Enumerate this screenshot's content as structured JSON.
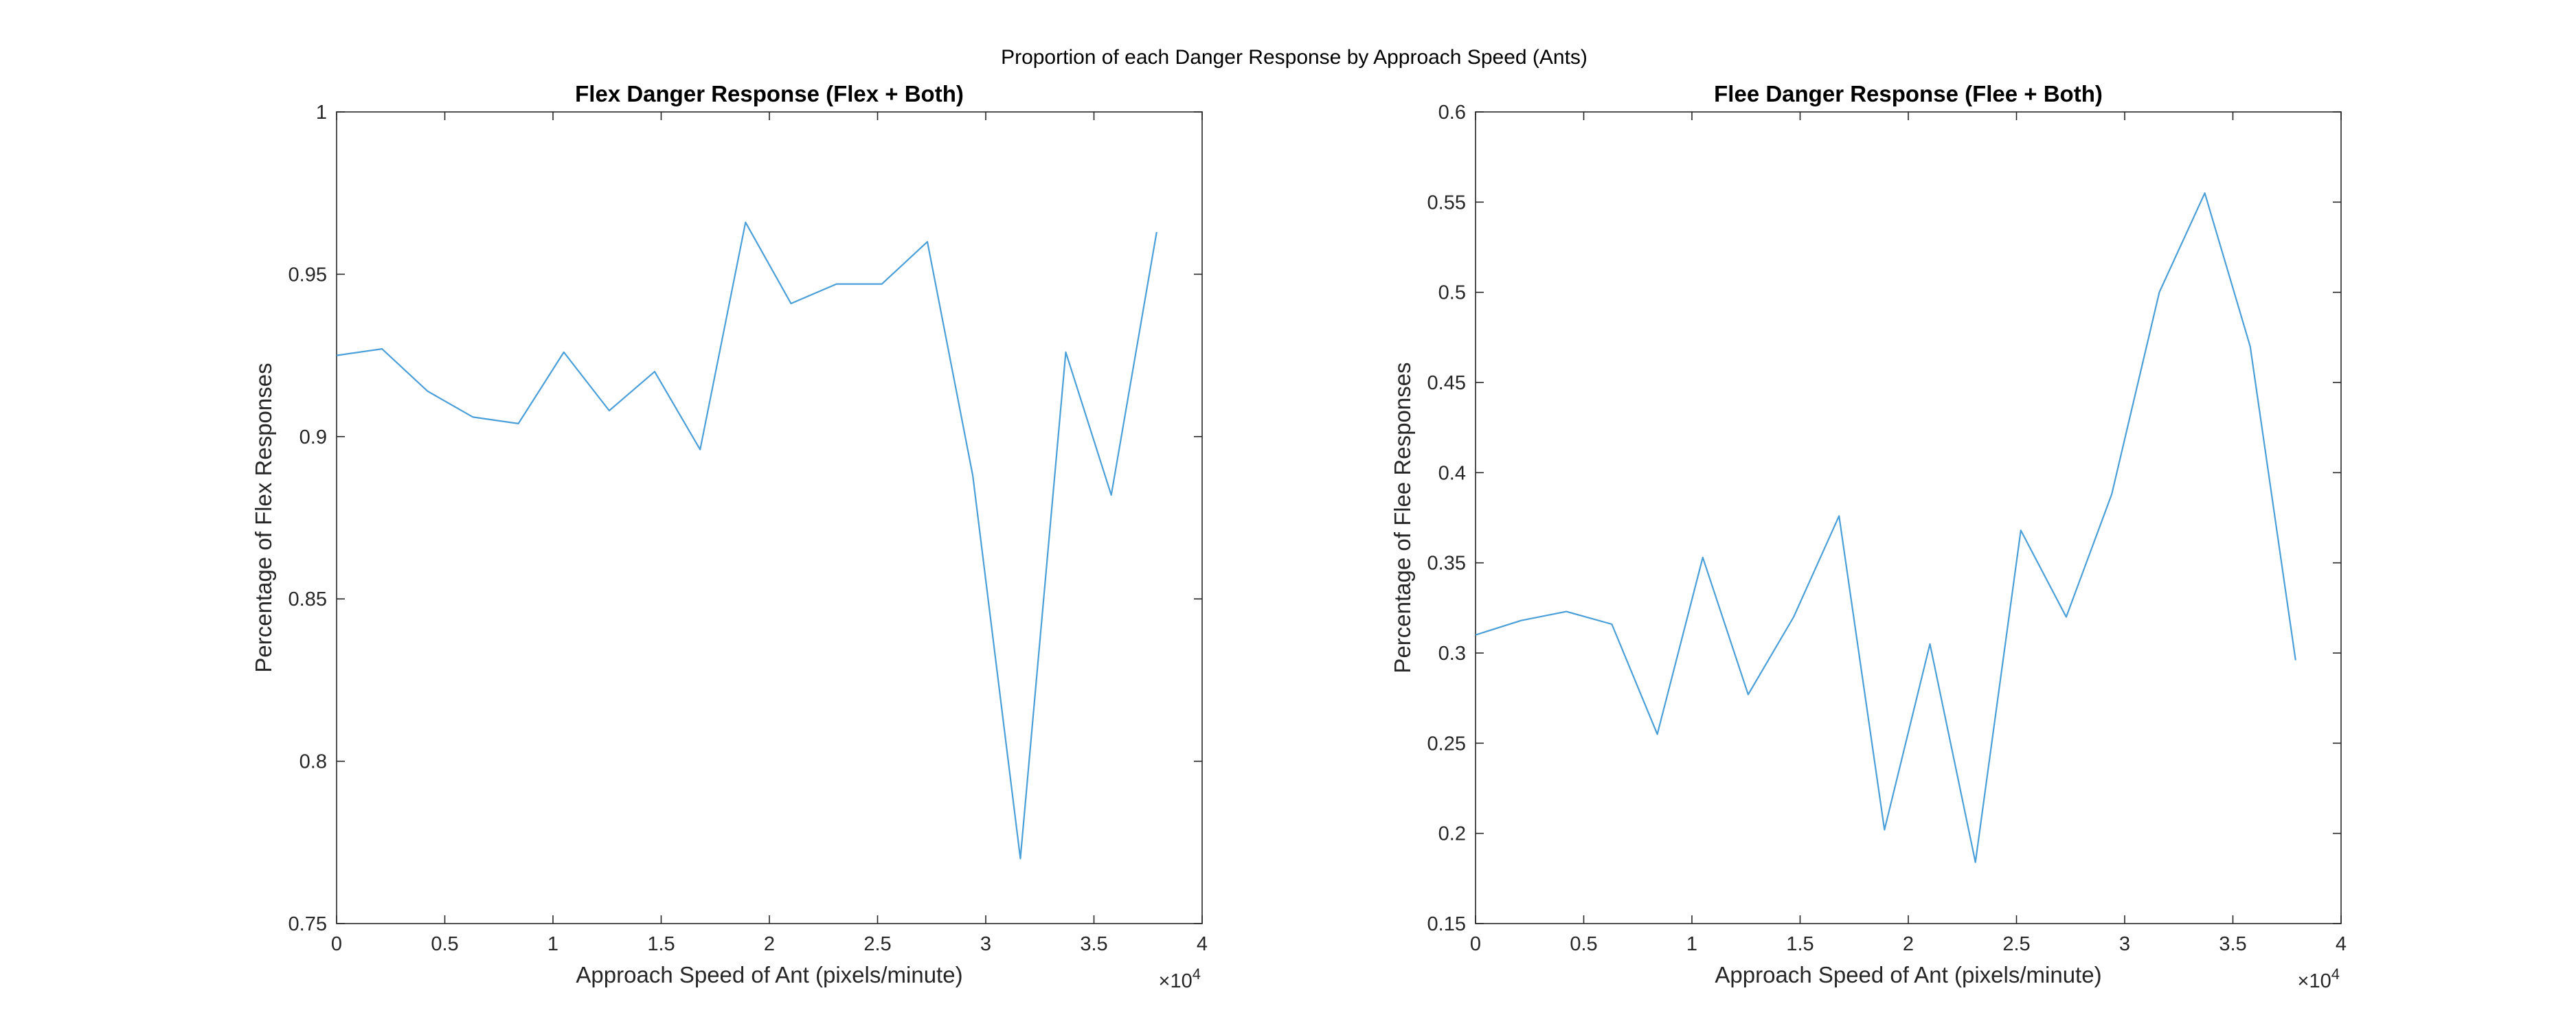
{
  "figure": {
    "title": "Proportion of each Danger Response by Approach Speed (Ants)"
  },
  "colors": {
    "line": "#4a9fd8",
    "axes": "#262626",
    "background": "#ffffff"
  },
  "chart_data": [
    {
      "type": "line",
      "title": "Flex Danger Response (Flex + Both)",
      "xlabel": "Approach Speed of Ant (pixels/minute)",
      "ylabel": "Percentage of Flex Responses",
      "xlim": [
        0,
        40000
      ],
      "ylim": [
        0.75,
        1
      ],
      "x_exponent_label": "×10",
      "x_exponent_power": "4",
      "xticks": [
        0,
        5000,
        10000,
        15000,
        20000,
        25000,
        30000,
        35000,
        40000
      ],
      "xtick_labels": [
        "0",
        "0.5",
        "1",
        "1.5",
        "2",
        "2.5",
        "3",
        "3.5",
        "4"
      ],
      "yticks": [
        0.75,
        0.8,
        0.85,
        0.9,
        0.95,
        1
      ],
      "ytick_labels": [
        "0.75",
        "0.8",
        "0.85",
        "0.9",
        "0.95",
        "1"
      ],
      "grid": false,
      "series": [
        {
          "x": [
            0,
            2100,
            4200,
            6300,
            8400,
            10500,
            12600,
            14700,
            16800,
            18900,
            21000,
            23100,
            25200,
            27300,
            29400,
            31600,
            33700,
            35800,
            37900
          ],
          "y": [
            0.925,
            0.927,
            0.914,
            0.906,
            0.904,
            0.926,
            0.908,
            0.92,
            0.896,
            0.966,
            0.941,
            0.947,
            0.947,
            0.96,
            0.888,
            0.77,
            0.926,
            0.882,
            0.963
          ]
        }
      ]
    },
    {
      "type": "line",
      "title": "Flee Danger Response (Flee + Both)",
      "xlabel": "Approach Speed of Ant (pixels/minute)",
      "ylabel": "Percentage of Flee Responses",
      "xlim": [
        0,
        40000
      ],
      "ylim": [
        0.15,
        0.6
      ],
      "x_exponent_label": "×10",
      "x_exponent_power": "4",
      "xticks": [
        0,
        5000,
        10000,
        15000,
        20000,
        25000,
        30000,
        35000,
        40000
      ],
      "xtick_labels": [
        "0",
        "0.5",
        "1",
        "1.5",
        "2",
        "2.5",
        "3",
        "3.5",
        "4"
      ],
      "yticks": [
        0.15,
        0.2,
        0.25,
        0.3,
        0.35,
        0.4,
        0.45,
        0.5,
        0.55,
        0.6
      ],
      "ytick_labels": [
        "0.15",
        "0.2",
        "0.25",
        "0.3",
        "0.35",
        "0.4",
        "0.45",
        "0.5",
        "0.55",
        "0.6"
      ],
      "grid": false,
      "series": [
        {
          "x": [
            0,
            2100,
            4200,
            6300,
            8400,
            10500,
            12600,
            14700,
            16800,
            18900,
            21000,
            23100,
            25200,
            27300,
            29400,
            31600,
            33700,
            35800,
            37900
          ],
          "y": [
            0.31,
            0.318,
            0.323,
            0.316,
            0.255,
            0.353,
            0.277,
            0.32,
            0.376,
            0.202,
            0.305,
            0.184,
            0.368,
            0.32,
            0.388,
            0.5,
            0.555,
            0.47,
            0.296
          ]
        }
      ]
    }
  ]
}
